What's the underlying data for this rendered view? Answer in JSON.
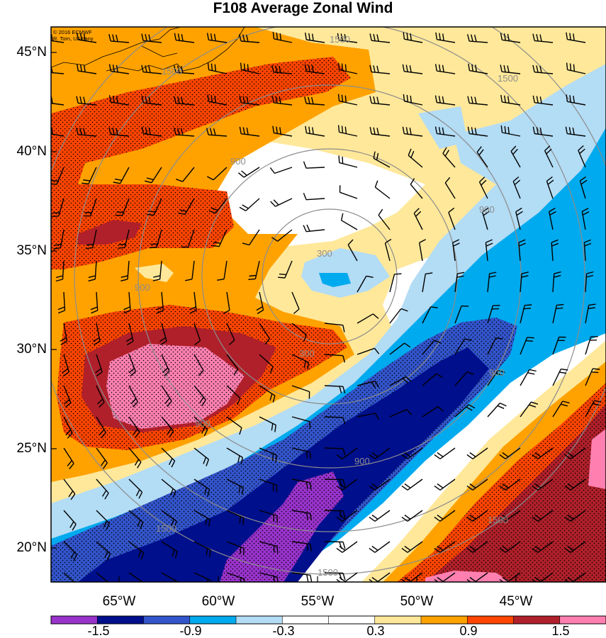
{
  "title": "F108 Average Zonal Wind",
  "credit": {
    "line1": "© 2016 ECMWF",
    "line2": "R. Torn, UAlbany"
  },
  "latitude_labels": [
    "45°N",
    "40°N",
    "35°N",
    "30°N",
    "25°N",
    "20°N"
  ],
  "longitude_labels": [
    "65°W",
    "60°W",
    "55°W",
    "50°W",
    "45°W"
  ],
  "colorbar": {
    "colors": [
      "#9933cc",
      "#000f8c",
      "#3355cc",
      "#00aaee",
      "#b3dcf5",
      "#ffffff",
      "#ffffff",
      "#ffe89a",
      "#ffa200",
      "#ff4500",
      "#b0202a",
      "#ff80b0"
    ],
    "tick_labels": [
      "-1.5",
      "-0.9",
      "-0.3",
      "0.3",
      "0.9",
      "1.5"
    ]
  },
  "range_ring_labels": [
    "300",
    "900",
    "1500"
  ],
  "shading_colors": {
    "background": "#ffffff",
    "light_yellow": "#ffe89a",
    "orange": "#ffa200",
    "red_orange": "#ff4500",
    "dark_red": "#b0202a",
    "pink": "#ff80b0",
    "light_blue": "#b3dcf5",
    "cyan": "#00aaee",
    "medium_blue": "#3355cc",
    "navy": "#000f8c",
    "purple": "#9933cc",
    "ring_color": "#8c8c8c"
  }
}
